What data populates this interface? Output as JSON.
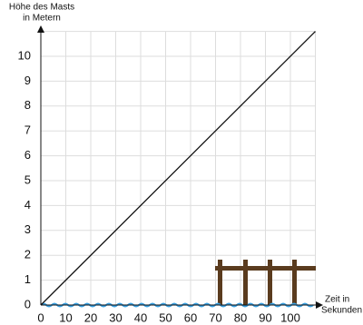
{
  "chart_data": {
    "type": "line",
    "ylabel": [
      "Höhe des Masts",
      "in Metern"
    ],
    "xlabel": [
      "Zeit in",
      "Sekunden"
    ],
    "x": [
      0,
      110
    ],
    "series": [
      {
        "color": "#111111",
        "values": [
          0,
          11
        ]
      }
    ],
    "xlim": [
      0,
      110
    ],
    "ylim": [
      0,
      11
    ],
    "xticks": [
      0,
      10,
      20,
      30,
      40,
      50,
      60,
      70,
      80,
      90,
      100
    ],
    "yticks": [
      0,
      1,
      2,
      3,
      4,
      5,
      6,
      7,
      8,
      9,
      10
    ],
    "grid": true
  }
}
